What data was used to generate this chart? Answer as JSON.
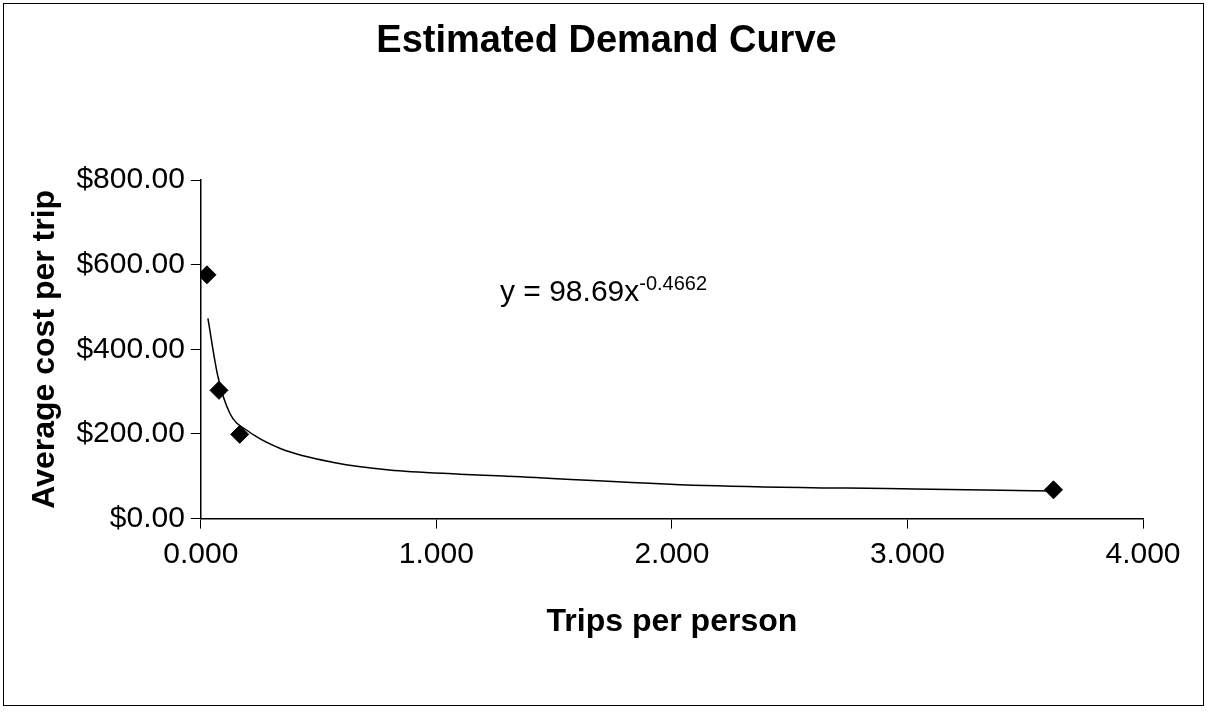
{
  "chart_data": {
    "type": "scatter",
    "title": "Estimated Demand Curve",
    "xlabel": "Trips per person",
    "ylabel": "Average cost per trip",
    "annotations": [
      "y = 98.69x$^{-0.4662}$"
    ],
    "series": [
      {
        "color": "#000000",
        "marker": "diamond",
        "x": [
          0.026,
          0.077,
          0.165,
          3.62
        ],
        "values": [
          576,
          303,
          199,
          68
        ]
      },
      {
        "type": "line",
        "color": "#000000",
        "marker": "none",
        "line_style": "solid",
        "x": [
          0.03,
          0.072,
          0.123,
          0.2,
          0.34,
          0.57,
          0.8,
          1.1,
          1.26,
          2.14,
          3.03,
          3.61
        ],
        "values": [
          473,
          337,
          249,
          207,
          165,
          132,
          115,
          105,
          101,
          78,
          70,
          65
        ]
      }
    ],
    "xlim": [
      0,
      4
    ],
    "xticks": [
      {
        "value": 0,
        "label": "0.000"
      },
      {
        "value": 1,
        "label": "1.000"
      },
      {
        "value": 2,
        "label": "2.000"
      },
      {
        "value": 3,
        "label": "3.000"
      },
      {
        "value": 4,
        "label": "4.000"
      }
    ],
    "ylim": [
      0,
      800
    ],
    "yticks": [
      {
        "value": 0,
        "label": "$0.00"
      },
      {
        "value": 200,
        "label": "$200.00"
      },
      {
        "value": 400,
        "label": "$400.00"
      },
      {
        "value": 600,
        "label": "$600.00"
      },
      {
        "value": 800,
        "label": "$800.00"
      }
    ],
    "grid": false,
    "legend": false
  }
}
